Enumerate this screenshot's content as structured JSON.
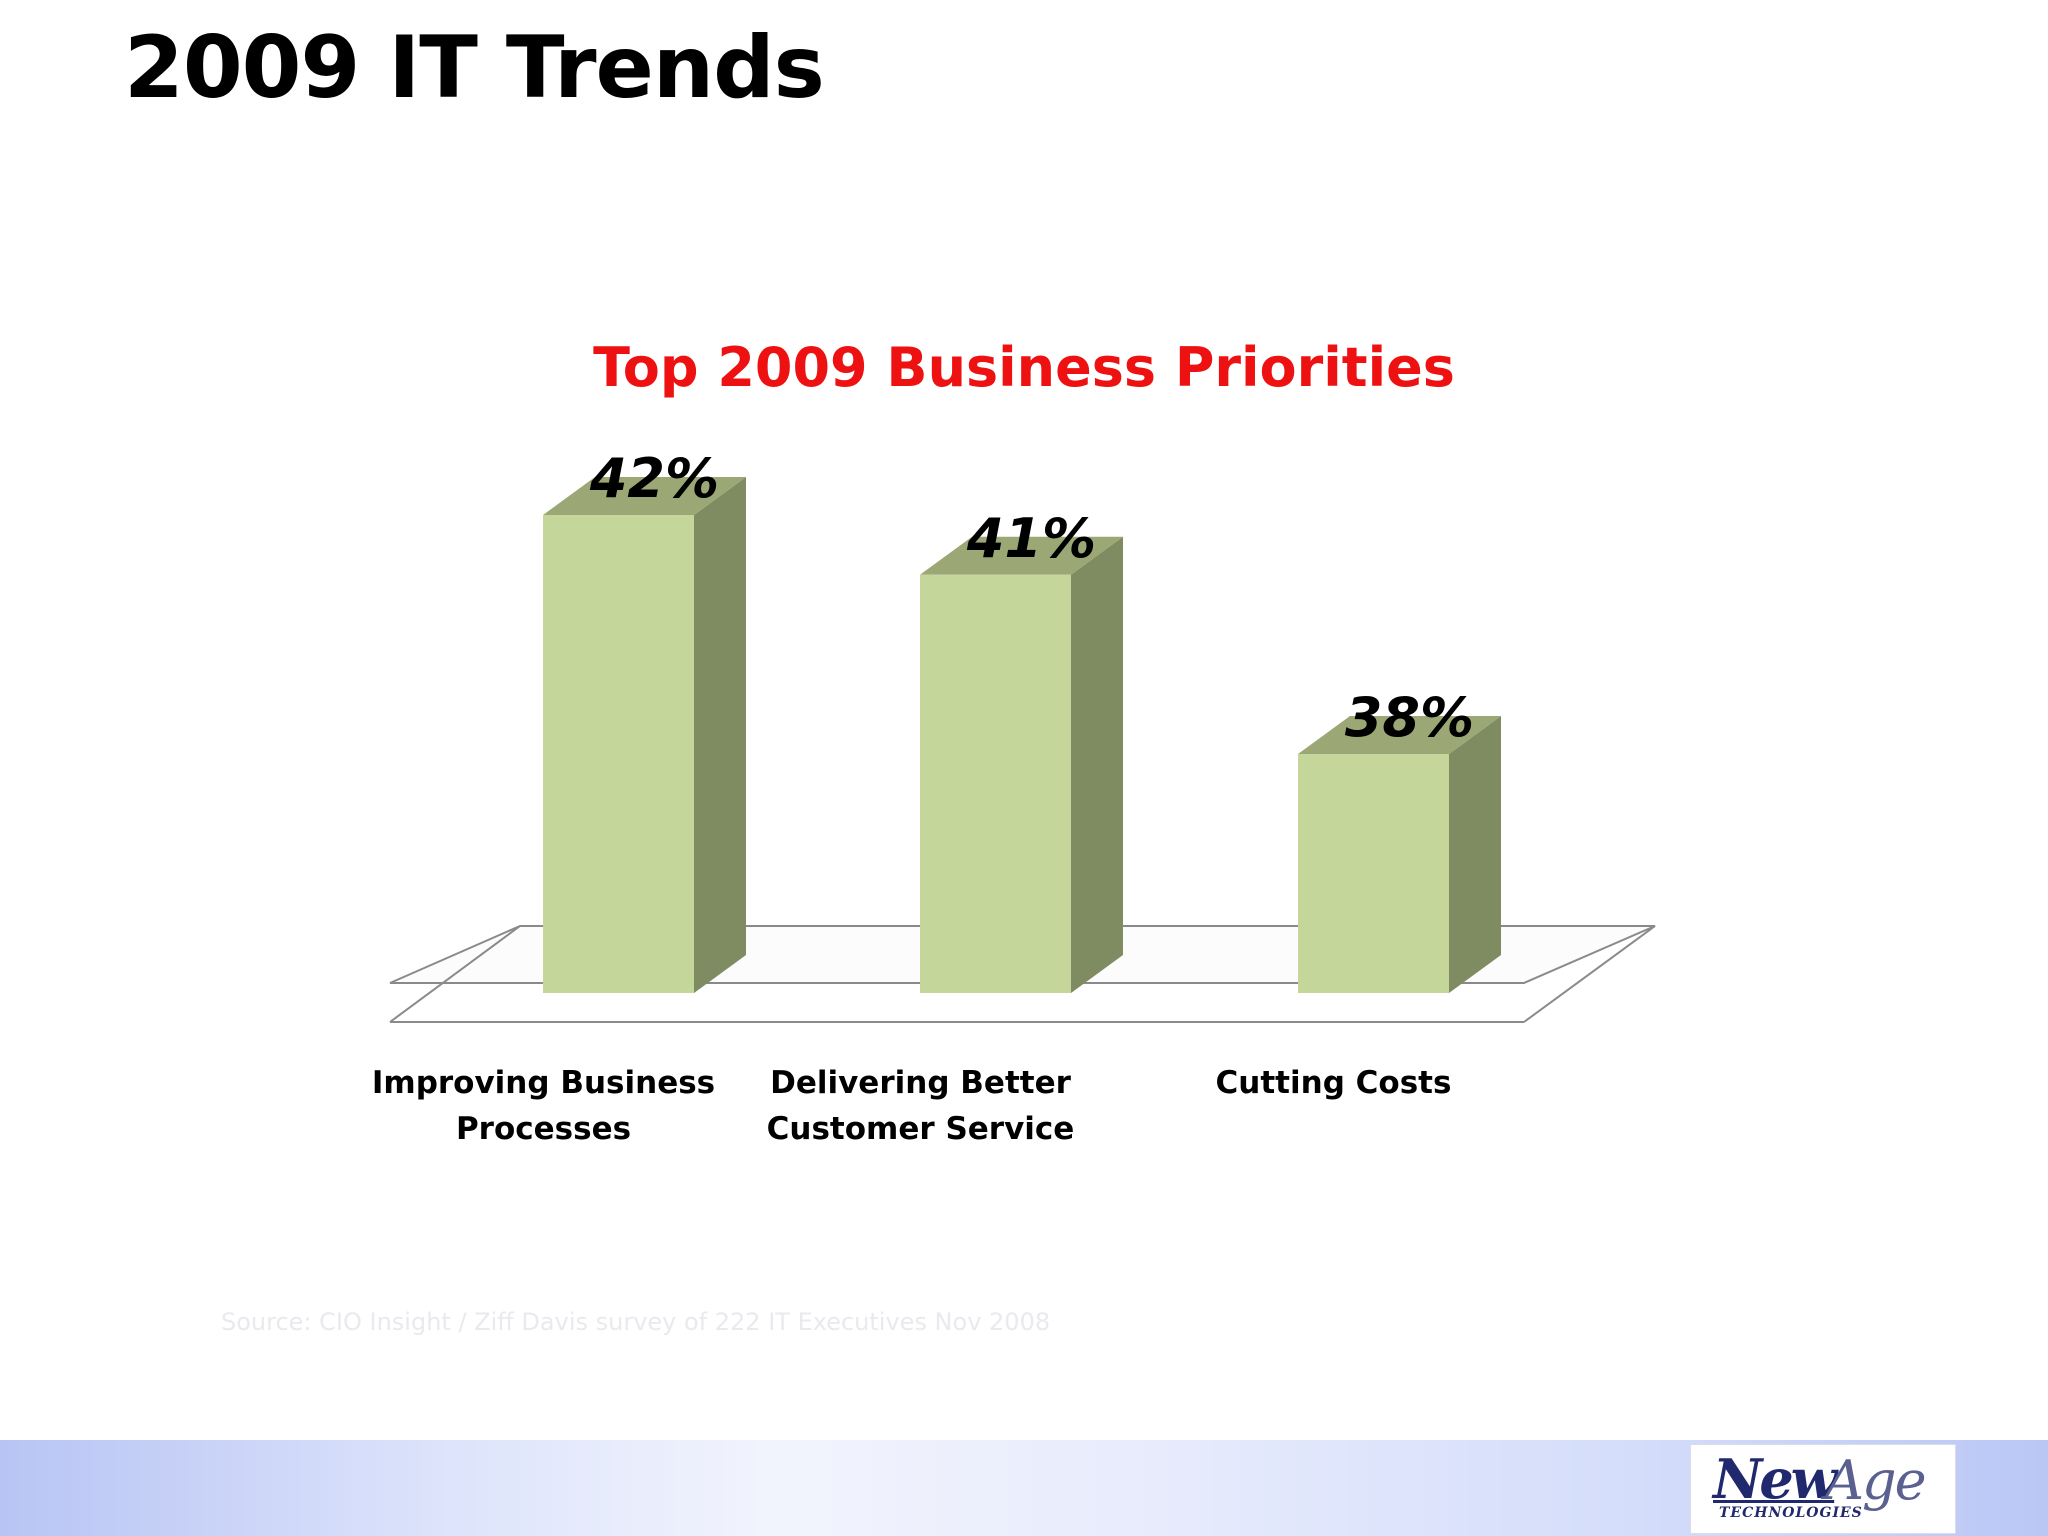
{
  "slide": {
    "title": "2009 IT Trends",
    "source": "Source:  CIO Insight / Ziff Davis survey of 222 IT Executives Nov 2008"
  },
  "logo": {
    "word1": "New",
    "word2": "Age",
    "tagline": "TECHNOLOGIES"
  },
  "colors": {
    "title": "#000000",
    "chart_title": "#ee1111",
    "bar_front": "#c5d69b",
    "bar_side": "#7f8b60",
    "bar_top": "#9ba875",
    "floor_line": "#8a8a8a"
  },
  "chart_data": {
    "type": "bar",
    "title": "Top 2009 Business Priorities",
    "categories": [
      [
        "Improving Business",
        "Processes"
      ],
      [
        "Delivering Better",
        "Customer Service"
      ],
      [
        "Cutting Costs"
      ]
    ],
    "values": [
      42,
      41,
      38
    ],
    "value_labels": [
      "42%",
      "41%",
      "38%"
    ],
    "ylim": [
      34,
      42
    ],
    "grid": false,
    "legend": "none"
  }
}
